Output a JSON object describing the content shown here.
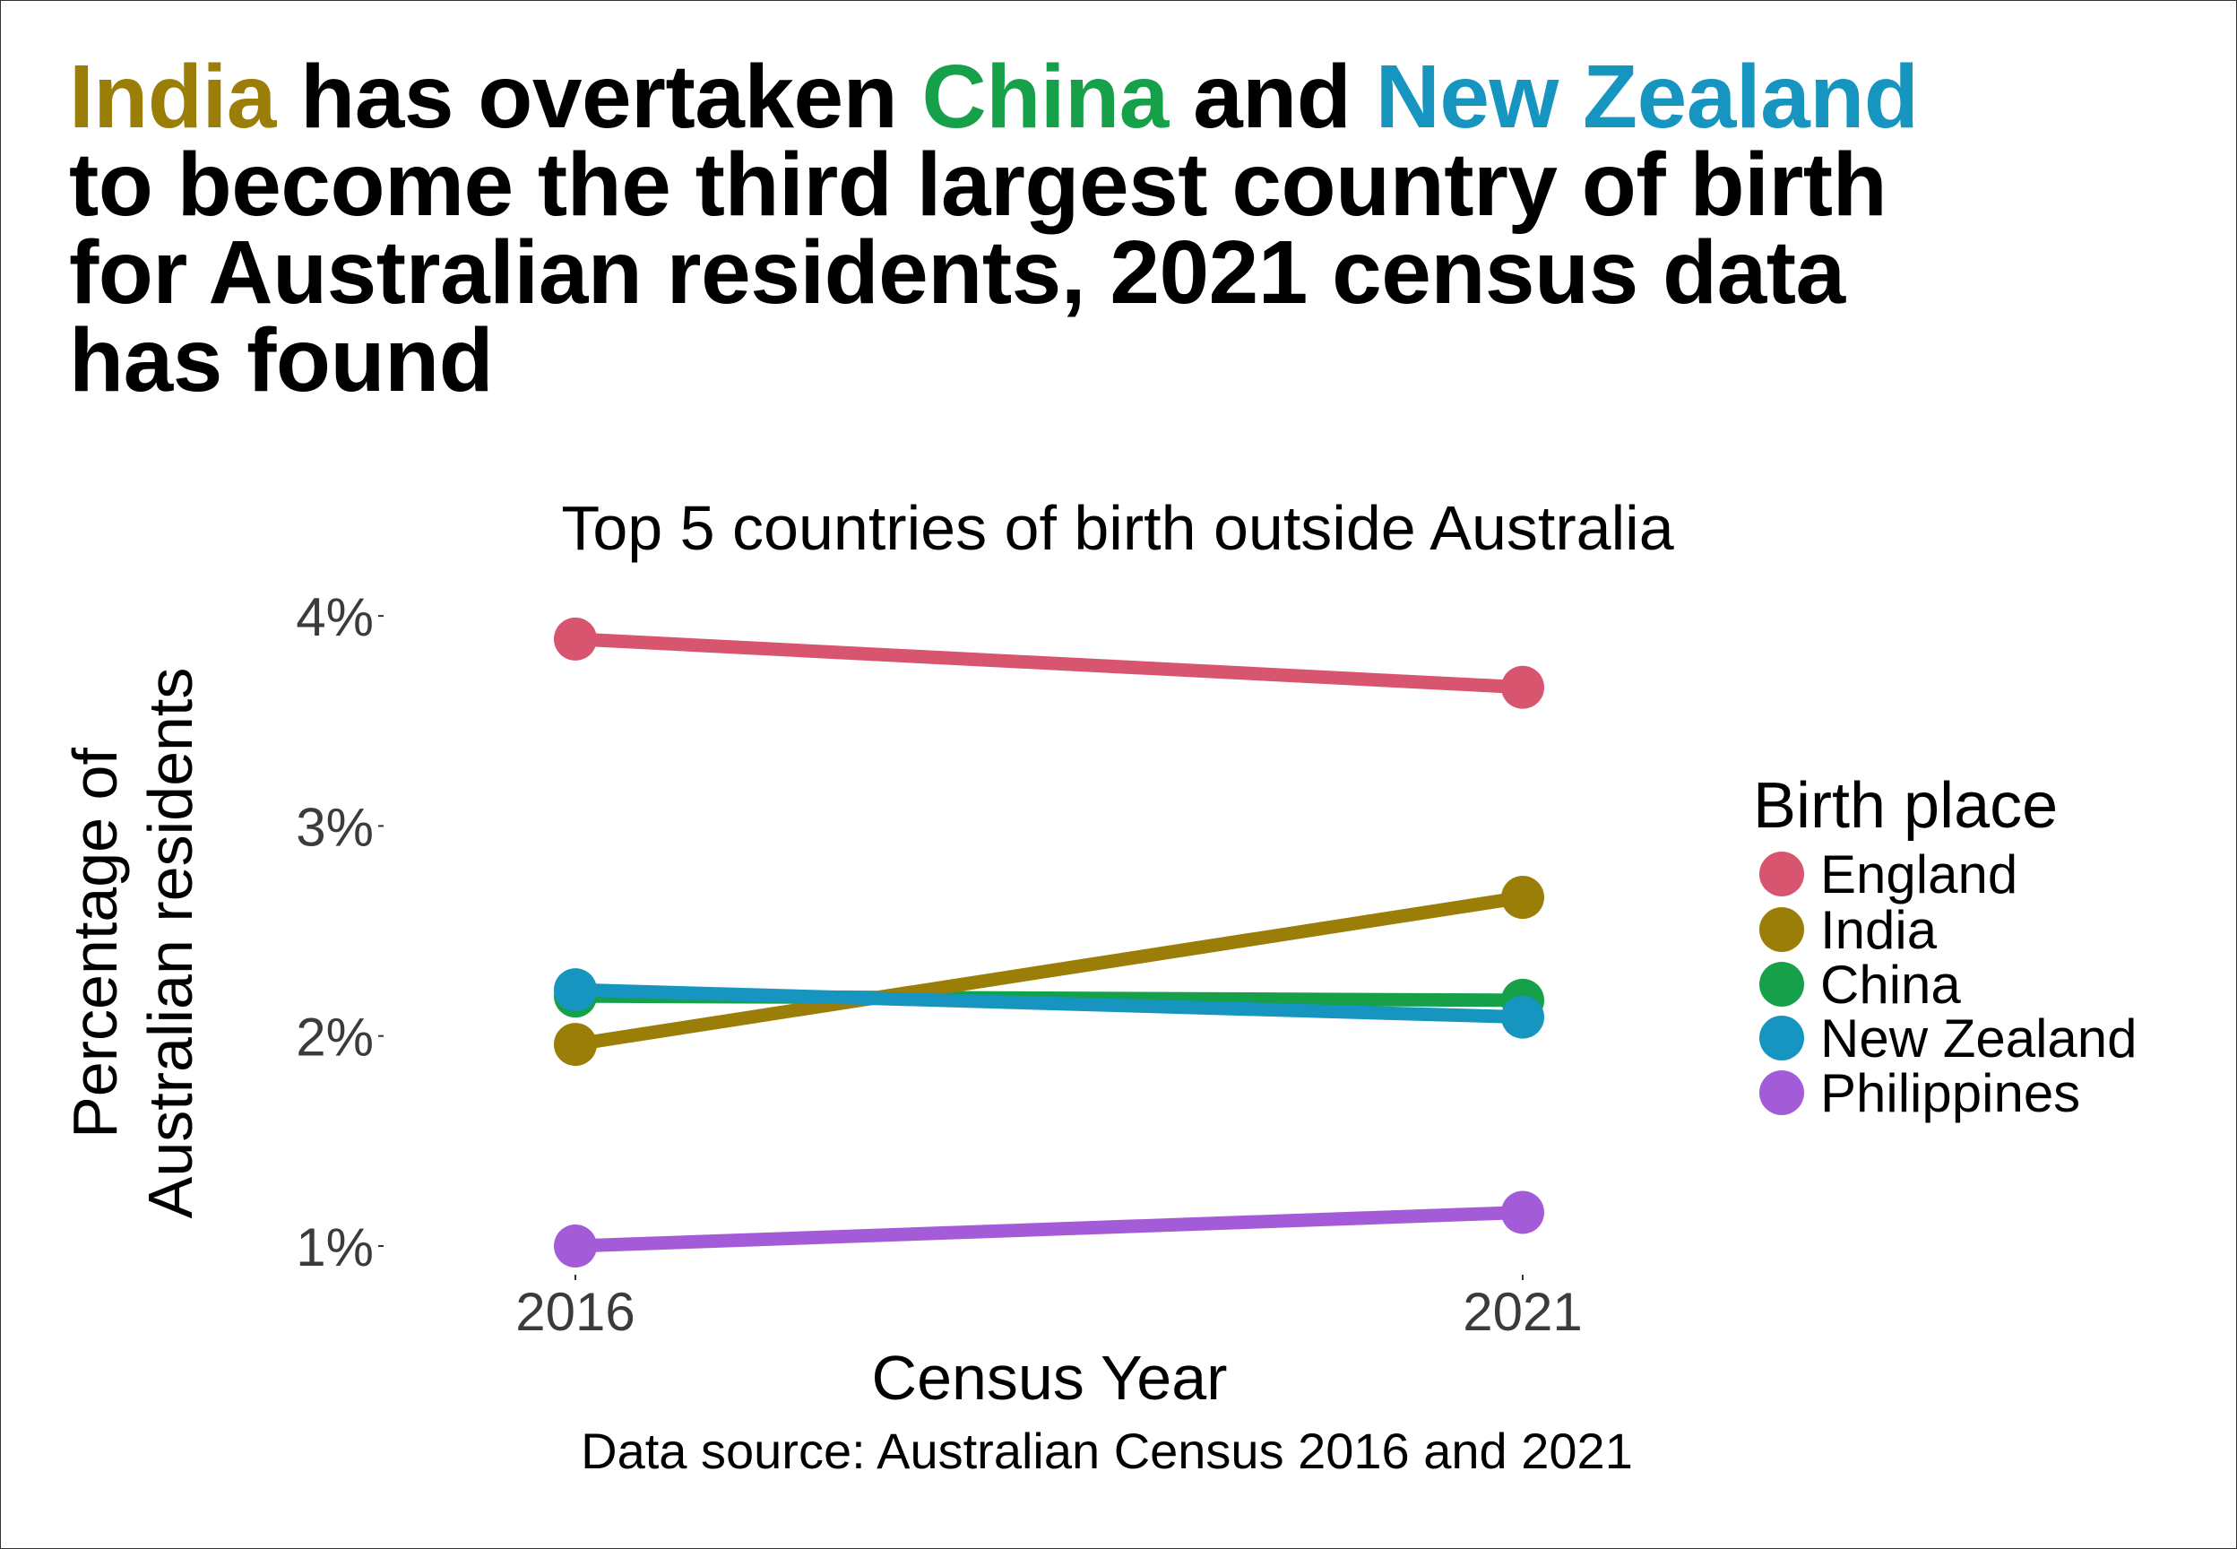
{
  "headline": {
    "line1": [
      {
        "text": "India",
        "color": "#9B7E08"
      },
      {
        "text": " has overtaken ",
        "color": "#000000"
      },
      {
        "text": "China",
        "color": "#16A04A"
      },
      {
        "text": " and ",
        "color": "#000000"
      },
      {
        "text": "New Zealand",
        "color": "#1595BF"
      }
    ],
    "line2": "to become the third largest country of birth",
    "line3": "for Australian residents, 2021 census data",
    "line4": "has found"
  },
  "chart_data": {
    "type": "line",
    "title": "Top 5 countries of birth outside Australia",
    "xlabel": "Census Year",
    "ylabel_lines": [
      "Percentage of",
      "Australian residents"
    ],
    "caption": "Data source: Australian Census 2016 and 2021",
    "x": [
      "2016",
      "2021"
    ],
    "yticks": [
      1,
      2,
      3,
      4
    ],
    "ytick_labels": [
      "1%",
      "2%",
      "3%",
      "4%"
    ],
    "ylim": [
      0.98,
      3.9
    ],
    "grid": false,
    "legend": {
      "title": "Birth place",
      "position": "right"
    },
    "series": [
      {
        "name": "England",
        "color": "#D8556F",
        "values": [
          3.89,
          3.66
        ]
      },
      {
        "name": "India",
        "color": "#9B7E08",
        "values": [
          1.96,
          2.66
        ]
      },
      {
        "name": "China",
        "color": "#16A04A",
        "values": [
          2.19,
          2.17
        ]
      },
      {
        "name": "New Zealand",
        "color": "#1595BF",
        "values": [
          2.22,
          2.09
        ]
      },
      {
        "name": "Philippines",
        "color": "#A45BD8",
        "values": [
          1.0,
          1.16
        ]
      }
    ]
  }
}
